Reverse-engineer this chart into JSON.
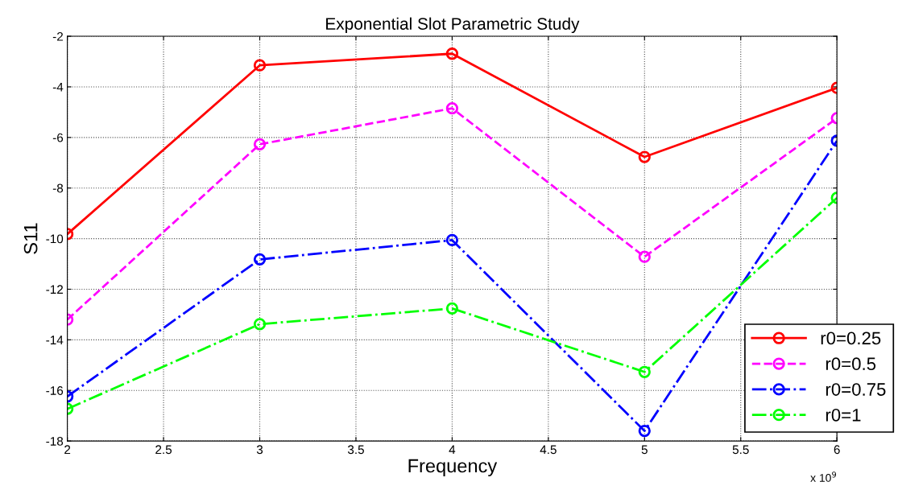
{
  "chart_data": {
    "type": "line",
    "title": "Exponential Slot Parametric Study",
    "xlabel": "Frequency",
    "ylabel": "S11",
    "x": [
      2,
      3,
      4,
      5,
      6
    ],
    "series": [
      {
        "name": "r0=0.25",
        "color": "#ff0000",
        "line_style": "solid",
        "values": [
          -9.82,
          -3.15,
          -2.69,
          -6.77,
          -4.04
        ]
      },
      {
        "name": " r0=0.5",
        "color": "#ff00ff",
        "line_style": "dashed",
        "values": [
          -13.2,
          -6.27,
          -4.85,
          -10.72,
          -5.24
        ]
      },
      {
        "name": " r0=0.75",
        "color": "#0000ff",
        "line_style": "dashdot",
        "values": [
          -16.24,
          -10.82,
          -10.06,
          -17.6,
          -6.13
        ]
      },
      {
        "name": " r0=1",
        "color": "#00ff00",
        "line_style": "dashdot",
        "values": [
          -16.73,
          -13.38,
          -12.76,
          -15.27,
          -8.39
        ]
      }
    ],
    "xlim": [
      2,
      6
    ],
    "xticks": [
      2,
      2.5,
      3,
      3.5,
      4,
      4.5,
      5,
      5.5,
      6
    ],
    "ylim": [
      -18,
      -2
    ],
    "yticks": [
      -18,
      -16,
      -14,
      -12,
      -10,
      -8,
      -6,
      -4,
      -2
    ],
    "annotations": [
      "x 10$^{9}$"
    ],
    "grid": true,
    "legend": "bottom right",
    "marker": "circle"
  }
}
